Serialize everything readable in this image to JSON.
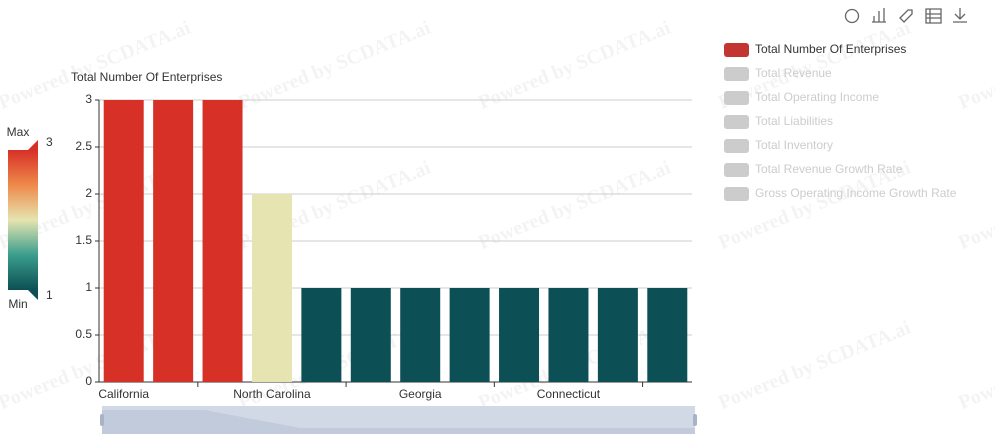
{
  "chart_data": {
    "type": "bar",
    "watermark": "Powered by SCDATA.ai",
    "y_axis_label": "Total Number Of Enterprises",
    "categories": [
      "California",
      null,
      null,
      "North Carolina",
      null,
      null,
      "Georgia",
      null,
      null,
      "Connecticut",
      null,
      null
    ],
    "series": [
      {
        "name": "Total Number Of Enterprises",
        "color": "#c23531",
        "selected": true,
        "values": [
          3,
          3,
          3,
          2,
          1,
          1,
          1,
          1,
          1,
          1,
          1,
          1
        ]
      },
      {
        "name": "Total Revenue",
        "selected": false
      },
      {
        "name": "Total Operating Income",
        "selected": false
      },
      {
        "name": "Total Liabilities",
        "selected": false
      },
      {
        "name": "Total Inventory",
        "selected": false
      },
      {
        "name": "Total Revenue Growth Rate",
        "selected": false
      },
      {
        "name": "Gross Operating Income Growth Rate",
        "selected": false
      }
    ],
    "inactive_color": "#ccc",
    "visual_map": {
      "min": 1,
      "max": 3,
      "text": [
        "Max",
        "Min"
      ],
      "colors": [
        "#0c4f55",
        "#3a9e8c",
        "#e6e4b0",
        "#ee8a4a",
        "#d73027"
      ]
    },
    "ylim": [
      0,
      3
    ],
    "yticks": [
      0,
      0.5,
      1,
      1.5,
      2,
      2.5,
      3
    ],
    "grid": true
  }
}
